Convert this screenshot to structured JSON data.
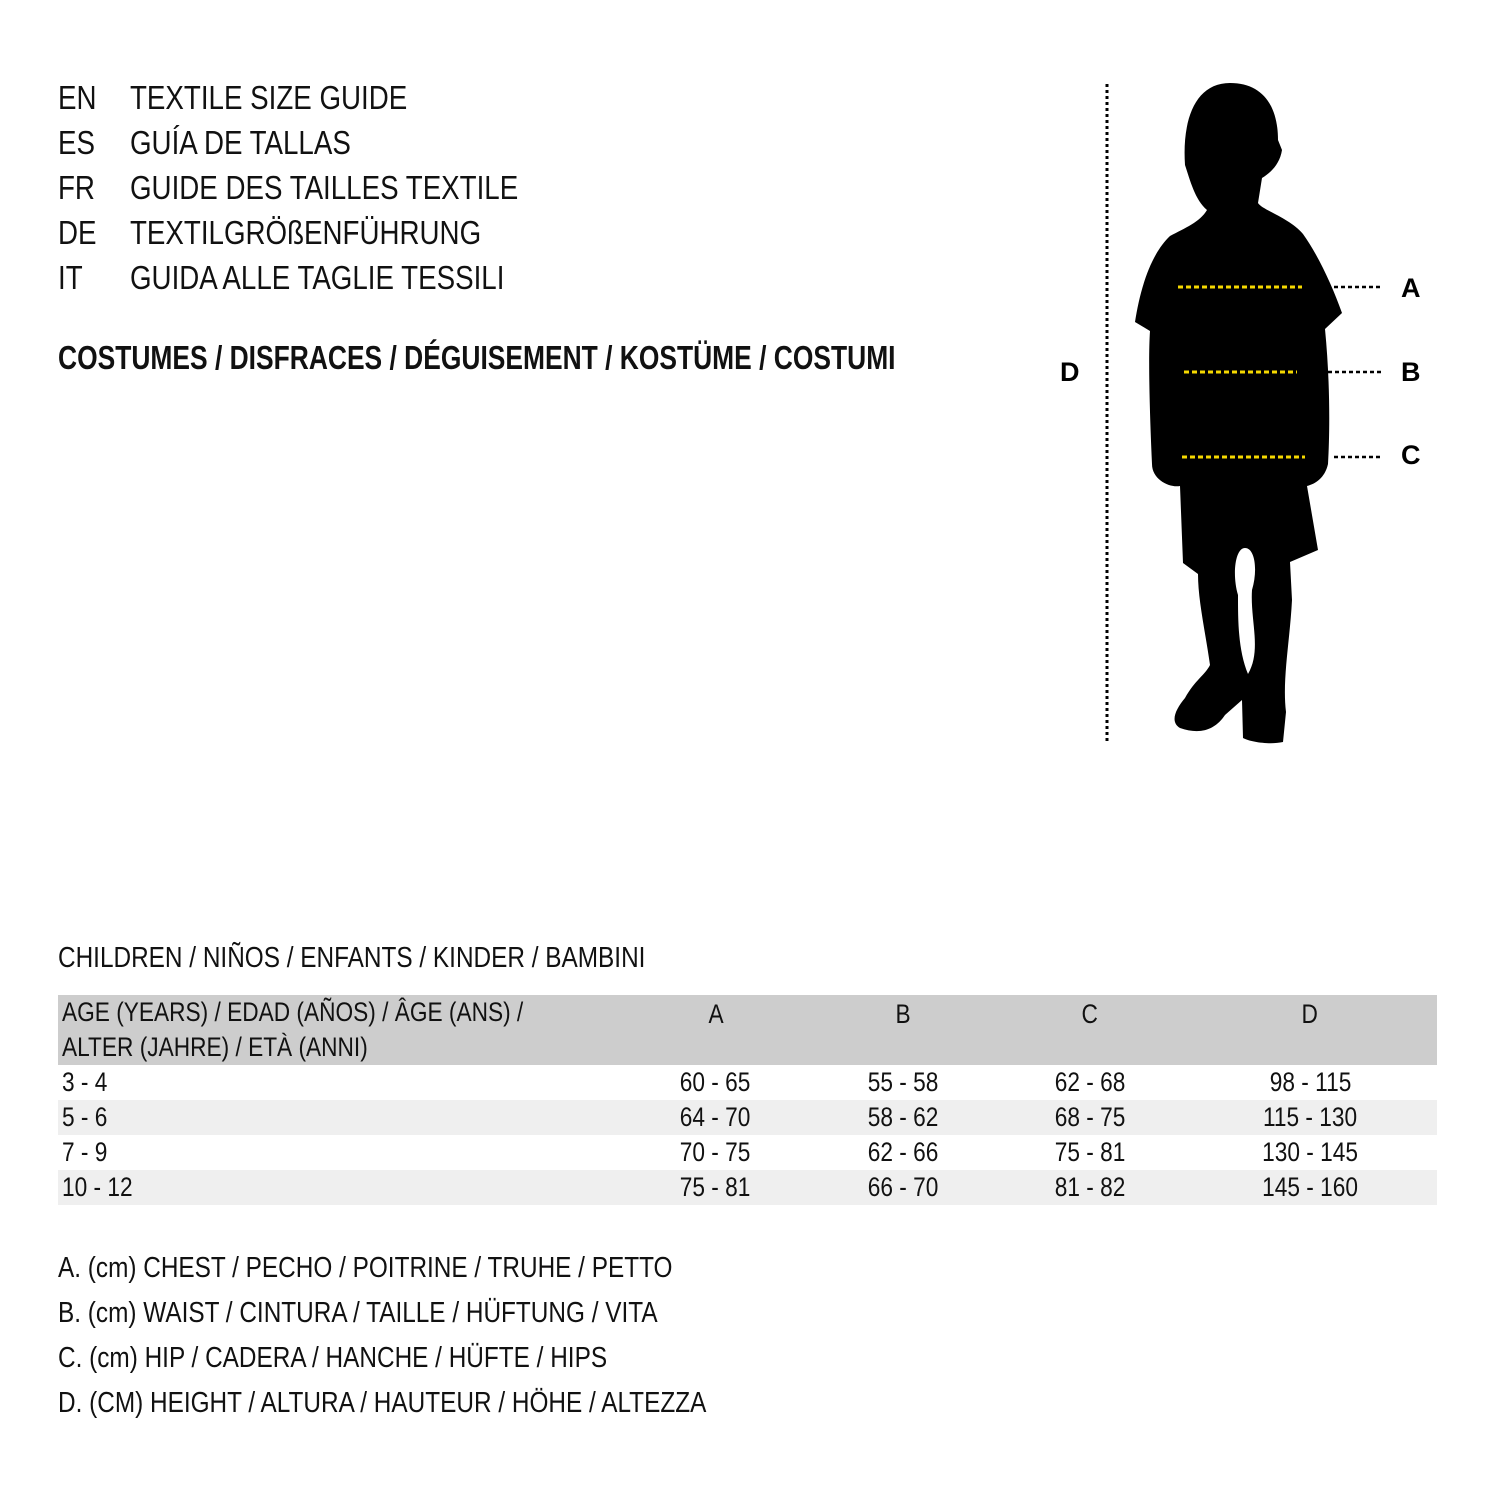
{
  "titles": [
    {
      "code": "EN",
      "text": "TEXTILE SIZE GUIDE"
    },
    {
      "code": "ES",
      "text": "GUÍA DE TALLAS"
    },
    {
      "code": "FR",
      "text": "GUIDE DES TAILLES TEXTILE"
    },
    {
      "code": "DE",
      "text": "TEXTILGRÖßENFÜHRUNG"
    },
    {
      "code": "IT",
      "text": "GUIDA ALLE TAGLIE TESSILI"
    }
  ],
  "category_heading": "COSTUMES / DISFRACES / DÉGUISEMENT / KOSTÜME / COSTUMI",
  "figure": {
    "labels": {
      "a": "A",
      "b": "B",
      "c": "C",
      "d": "D"
    },
    "measure_line_color": "#f5d800",
    "silhouette_color": "#000000"
  },
  "table": {
    "section_title": "CHILDREN / NIÑOS / ENFANTS / KINDER / BAMBINI",
    "headers": [
      "AGE (YEARS) / EDAD (AÑOS) / ÂGE (ANS) / ALTER (JAHRE) / ETÀ (ANNI)",
      "A",
      "B",
      "C",
      "D"
    ],
    "rows": [
      [
        "3 - 4",
        "60 - 65",
        "55 - 58",
        "62 - 68",
        "98 - 115"
      ],
      [
        "5 - 6",
        "64 - 70",
        "58 - 62",
        "68 - 75",
        "115 - 130"
      ],
      [
        "7 - 9",
        "70 - 75",
        "62 - 66",
        "75 - 81",
        "130 - 145"
      ],
      [
        "10 - 12",
        "75 - 81",
        "66 - 70",
        "81 - 82",
        "145 - 160"
      ]
    ],
    "header_bg": "#cdcdcd",
    "stripe_bg": "#efefef"
  },
  "legend": [
    "A. (cm) CHEST / PECHO / POITRINE / TRUHE / PETTO",
    "B. (cm) WAIST / CINTURA / TAILLE / HÜFTUNG / VITA",
    "C. (cm) HIP / CADERA / HANCHE / HÜFTE / HIPS",
    "D. (CM) HEIGHT / ALTURA / HAUTEUR / HÖHE / ALTEZZA"
  ]
}
